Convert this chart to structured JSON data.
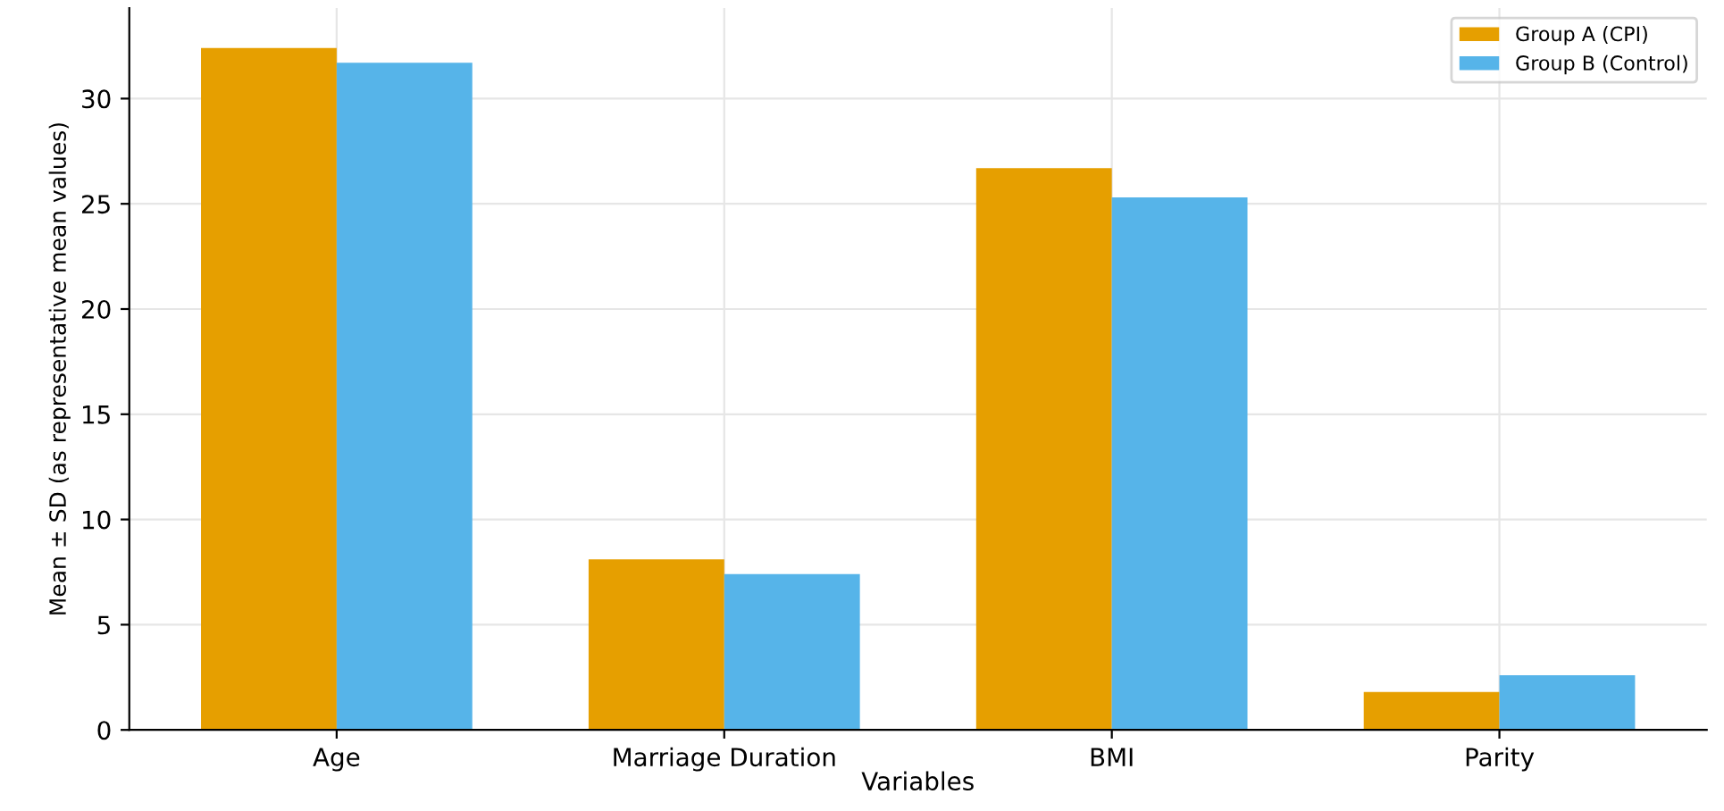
{
  "chart_data": {
    "type": "bar",
    "xlabel": "Variables",
    "ylabel": "Mean ± SD (as representative mean values)",
    "categories": [
      "Age",
      "Marriage Duration",
      "BMI",
      "Parity"
    ],
    "series": [
      {
        "name": "Group A (CPI)",
        "color": "#e69f00",
        "values": [
          32.4,
          8.1,
          26.7,
          1.8
        ]
      },
      {
        "name": "Group B (Control)",
        "color": "#56b4e9",
        "values": [
          31.7,
          7.4,
          25.3,
          2.6
        ]
      }
    ],
    "ylim": [
      0,
      34.3
    ],
    "yticks": [
      0,
      5,
      10,
      15,
      20,
      25,
      30
    ],
    "grid": true,
    "legend": "top right"
  }
}
